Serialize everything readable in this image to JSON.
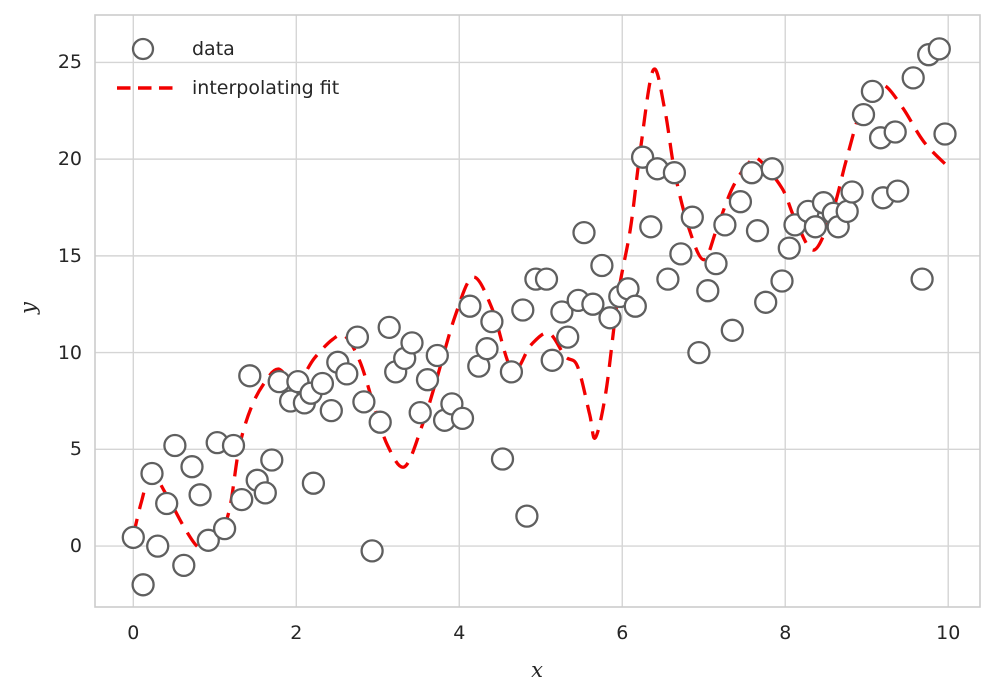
{
  "legend": {
    "data_label": "data",
    "fit_label": "interpolating fit"
  },
  "axes": {
    "x_label": "x",
    "y_label": "y"
  },
  "colors": {
    "fit_line": "#f20000",
    "marker_edge": "#5f5f5f",
    "marker_face": "#ffffff",
    "grid": "#d5d5d5",
    "spine": "#cccccc",
    "text": "#262626",
    "background": "#ffffff"
  },
  "chart_data": {
    "type": "scatter",
    "title": "",
    "xlabel": "x",
    "ylabel": "y",
    "xlim": [
      -0.47,
      10.39
    ],
    "ylim": [
      -3.15,
      27.45
    ],
    "x_ticks": [
      0,
      2,
      4,
      6,
      8,
      10
    ],
    "y_ticks": [
      0,
      5,
      10,
      15,
      20,
      25
    ],
    "grid": true,
    "legend_position": "upper left",
    "series": [
      {
        "name": "data",
        "type": "scatter",
        "marker": "open-circle",
        "color": "#5f5f5f",
        "points": [
          [
            0.0,
            0.45
          ],
          [
            0.12,
            -2.0
          ],
          [
            0.23,
            3.75
          ],
          [
            0.3,
            0.0
          ],
          [
            0.41,
            2.2
          ],
          [
            0.51,
            5.2
          ],
          [
            0.62,
            -1.0
          ],
          [
            0.72,
            4.1
          ],
          [
            0.82,
            2.65
          ],
          [
            0.92,
            0.3
          ],
          [
            1.03,
            5.35
          ],
          [
            1.12,
            0.9
          ],
          [
            1.23,
            5.2
          ],
          [
            1.33,
            2.4
          ],
          [
            1.43,
            8.8
          ],
          [
            1.52,
            3.4
          ],
          [
            1.62,
            2.75
          ],
          [
            1.7,
            4.45
          ],
          [
            1.79,
            8.5
          ],
          [
            1.93,
            7.5
          ],
          [
            2.02,
            8.5
          ],
          [
            2.1,
            7.4
          ],
          [
            2.18,
            7.9
          ],
          [
            2.21,
            3.25
          ],
          [
            2.32,
            8.4
          ],
          [
            2.43,
            7.0
          ],
          [
            2.51,
            9.5
          ],
          [
            2.62,
            8.9
          ],
          [
            2.75,
            10.8
          ],
          [
            2.83,
            7.45
          ],
          [
            2.93,
            -0.25
          ],
          [
            3.03,
            6.4
          ],
          [
            3.14,
            11.3
          ],
          [
            3.22,
            9.0
          ],
          [
            3.33,
            9.7
          ],
          [
            3.42,
            10.5
          ],
          [
            3.52,
            6.9
          ],
          [
            3.61,
            8.6
          ],
          [
            3.73,
            9.85
          ],
          [
            3.82,
            6.5
          ],
          [
            3.91,
            7.35
          ],
          [
            4.04,
            6.6
          ],
          [
            4.13,
            12.4
          ],
          [
            4.24,
            9.3
          ],
          [
            4.34,
            10.2
          ],
          [
            4.4,
            11.6
          ],
          [
            4.53,
            4.5
          ],
          [
            4.64,
            9.0
          ],
          [
            4.78,
            12.2
          ],
          [
            4.83,
            1.55
          ],
          [
            4.94,
            13.8
          ],
          [
            5.07,
            13.8
          ],
          [
            5.14,
            9.6
          ],
          [
            5.26,
            12.1
          ],
          [
            5.33,
            10.8
          ],
          [
            5.46,
            12.7
          ],
          [
            5.53,
            16.2
          ],
          [
            5.64,
            12.5
          ],
          [
            5.75,
            14.5
          ],
          [
            5.85,
            11.8
          ],
          [
            5.97,
            12.9
          ],
          [
            6.07,
            13.3
          ],
          [
            6.16,
            12.4
          ],
          [
            6.25,
            20.1
          ],
          [
            6.35,
            16.5
          ],
          [
            6.43,
            19.5
          ],
          [
            6.56,
            13.8
          ],
          [
            6.64,
            19.3
          ],
          [
            6.72,
            15.1
          ],
          [
            6.86,
            17.0
          ],
          [
            6.94,
            10.0
          ],
          [
            7.05,
            13.2
          ],
          [
            7.15,
            14.6
          ],
          [
            7.26,
            16.6
          ],
          [
            7.35,
            11.15
          ],
          [
            7.45,
            17.8
          ],
          [
            7.59,
            19.3
          ],
          [
            7.66,
            16.3
          ],
          [
            7.76,
            12.6
          ],
          [
            7.84,
            19.5
          ],
          [
            7.96,
            13.7
          ],
          [
            8.05,
            15.4
          ],
          [
            8.12,
            16.6
          ],
          [
            8.28,
            17.3
          ],
          [
            8.37,
            16.5
          ],
          [
            8.47,
            17.75
          ],
          [
            8.59,
            17.2
          ],
          [
            8.65,
            16.5
          ],
          [
            8.76,
            17.3
          ],
          [
            8.82,
            18.3
          ],
          [
            8.96,
            22.3
          ],
          [
            9.07,
            23.5
          ],
          [
            9.17,
            21.1
          ],
          [
            9.2,
            18.0
          ],
          [
            9.35,
            21.4
          ],
          [
            9.38,
            18.35
          ],
          [
            9.57,
            24.2
          ],
          [
            9.68,
            13.8
          ],
          [
            9.76,
            25.4
          ],
          [
            9.89,
            25.7
          ],
          [
            9.96,
            21.3
          ]
        ]
      },
      {
        "name": "interpolating fit",
        "type": "line",
        "linestyle": "dashed",
        "color": "#f20000",
        "points": [
          [
            0.0,
            0.55
          ],
          [
            0.1,
            2.3
          ],
          [
            0.22,
            3.75
          ],
          [
            0.4,
            2.7
          ],
          [
            0.62,
            1.0
          ],
          [
            0.78,
            0.0
          ],
          [
            0.9,
            -0.15
          ],
          [
            1.05,
            0.5
          ],
          [
            1.18,
            1.9
          ],
          [
            1.3,
            5.1
          ],
          [
            1.45,
            7.2
          ],
          [
            1.62,
            8.5
          ],
          [
            1.78,
            9.15
          ],
          [
            2.0,
            8.4
          ],
          [
            2.22,
            9.7
          ],
          [
            2.45,
            10.7
          ],
          [
            2.6,
            10.85
          ],
          [
            2.78,
            9.55
          ],
          [
            2.95,
            7.3
          ],
          [
            3.12,
            5.2
          ],
          [
            3.33,
            4.1
          ],
          [
            3.55,
            6.3
          ],
          [
            3.72,
            8.6
          ],
          [
            3.95,
            11.9
          ],
          [
            4.17,
            13.9
          ],
          [
            4.4,
            12.3
          ],
          [
            4.65,
            9.1
          ],
          [
            4.88,
            10.4
          ],
          [
            5.1,
            11.0
          ],
          [
            5.3,
            9.8
          ],
          [
            5.45,
            9.3
          ],
          [
            5.6,
            6.8
          ],
          [
            5.67,
            5.6
          ],
          [
            5.8,
            8.0
          ],
          [
            5.95,
            13.0
          ],
          [
            6.1,
            16.4
          ],
          [
            6.22,
            20.4
          ],
          [
            6.38,
            24.6
          ],
          [
            6.52,
            22.6
          ],
          [
            6.65,
            19.2
          ],
          [
            6.82,
            16.4
          ],
          [
            7.0,
            14.8
          ],
          [
            7.16,
            16.4
          ],
          [
            7.35,
            18.5
          ],
          [
            7.55,
            19.8
          ],
          [
            7.67,
            20.0
          ],
          [
            7.96,
            18.5
          ],
          [
            8.12,
            16.9
          ],
          [
            8.35,
            15.3
          ],
          [
            8.58,
            17.3
          ],
          [
            8.74,
            19.8
          ],
          [
            8.9,
            22.2
          ],
          [
            9.05,
            23.5
          ],
          [
            9.22,
            23.8
          ],
          [
            9.45,
            22.6
          ],
          [
            9.7,
            20.9
          ],
          [
            10.0,
            19.6
          ]
        ]
      }
    ]
  }
}
